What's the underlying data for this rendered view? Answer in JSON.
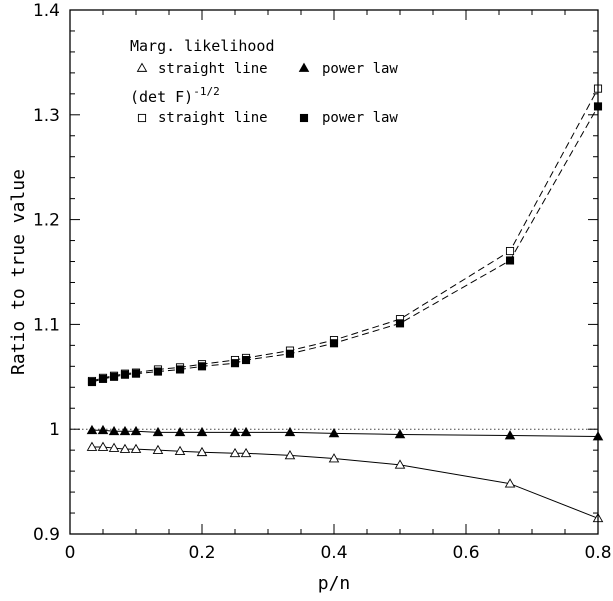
{
  "chart_data": {
    "type": "line",
    "xlabel": "p/n",
    "ylabel": "Ratio to true value",
    "xlim": [
      0,
      0.8
    ],
    "ylim": [
      0.9,
      1.4
    ],
    "xticks": [
      "0",
      "0.2",
      "0.4",
      "0.6",
      "0.8"
    ],
    "yticks": [
      "0.9",
      "1",
      "1.1",
      "1.2",
      "1.3",
      "1.4"
    ],
    "reference_line": 1.0,
    "legend": {
      "placement": "top-left",
      "group1_title": "Marg. likelihood",
      "group2_title": "(det F)",
      "group2_exponent": "-1/2",
      "labels": {
        "ml_straight": "straight line",
        "ml_power": "power law",
        "f_straight": "straight line",
        "f_power": "power law"
      }
    },
    "series": [
      {
        "group": "Marg. likelihood",
        "name": "straight line",
        "marker": "open-triangle",
        "dash": "solid",
        "x": [
          0.0333,
          0.05,
          0.0667,
          0.0833,
          0.1,
          0.1333,
          0.1667,
          0.2,
          0.25,
          0.2667,
          0.3333,
          0.4,
          0.5,
          0.6667,
          0.8
        ],
        "y": [
          0.983,
          0.983,
          0.982,
          0.981,
          0.981,
          0.98,
          0.979,
          0.978,
          0.977,
          0.977,
          0.975,
          0.972,
          0.966,
          0.948,
          0.915
        ]
      },
      {
        "group": "Marg. likelihood",
        "name": "power law",
        "marker": "filled-triangle",
        "dash": "solid",
        "x": [
          0.0333,
          0.05,
          0.0667,
          0.0833,
          0.1,
          0.1333,
          0.1667,
          0.2,
          0.25,
          0.2667,
          0.3333,
          0.4,
          0.5,
          0.6667,
          0.8
        ],
        "y": [
          0.999,
          0.999,
          0.998,
          0.998,
          0.998,
          0.997,
          0.997,
          0.997,
          0.997,
          0.997,
          0.997,
          0.996,
          0.995,
          0.994,
          0.993
        ]
      },
      {
        "group": "(det F)^-1/2",
        "name": "straight line",
        "marker": "open-square",
        "dash": "dashed",
        "x": [
          0.0333,
          0.05,
          0.0667,
          0.0833,
          0.1,
          0.1333,
          0.1667,
          0.2,
          0.25,
          0.2667,
          0.3333,
          0.4,
          0.5,
          0.6667,
          0.8
        ],
        "y": [
          1.046,
          1.049,
          1.051,
          1.053,
          1.054,
          1.057,
          1.059,
          1.062,
          1.066,
          1.068,
          1.075,
          1.085,
          1.105,
          1.17,
          1.325
        ]
      },
      {
        "group": "(det F)^-1/2",
        "name": "power law",
        "marker": "filled-square",
        "dash": "dashed",
        "x": [
          0.0333,
          0.05,
          0.0667,
          0.0833,
          0.1,
          0.1333,
          0.1667,
          0.2,
          0.25,
          0.2667,
          0.3333,
          0.4,
          0.5,
          0.6667,
          0.8
        ],
        "y": [
          1.045,
          1.048,
          1.05,
          1.052,
          1.053,
          1.055,
          1.057,
          1.06,
          1.063,
          1.066,
          1.072,
          1.082,
          1.101,
          1.161,
          1.308
        ]
      }
    ]
  }
}
